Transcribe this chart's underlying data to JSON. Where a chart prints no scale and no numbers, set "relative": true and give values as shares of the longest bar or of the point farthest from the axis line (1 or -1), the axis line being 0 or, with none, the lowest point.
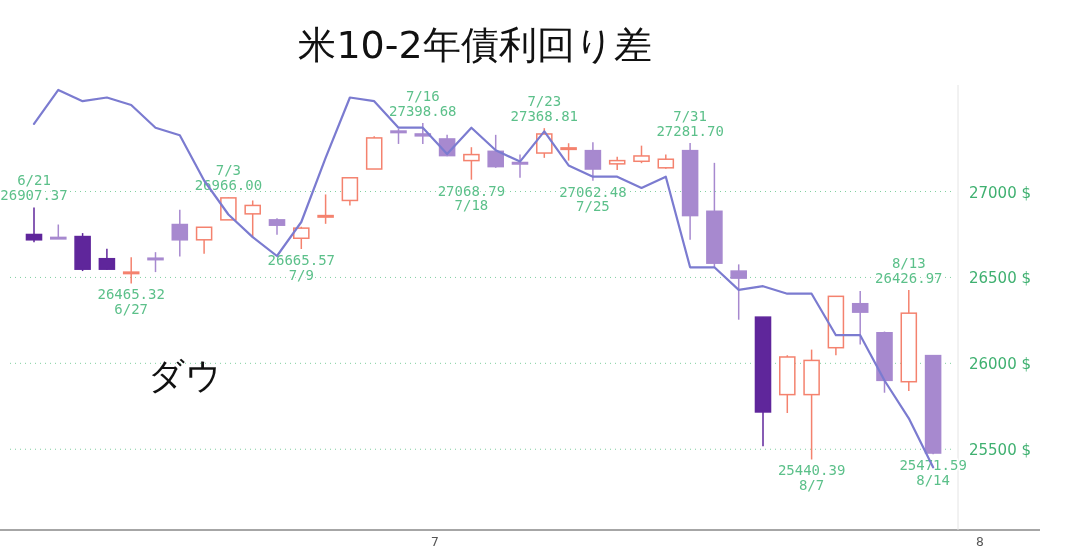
{
  "chart_data": [
    {
      "type": "candlestick",
      "categories": [
        null,
        null,
        null,
        null,
        null,
        null,
        null,
        null,
        null,
        null,
        null,
        null,
        null,
        null,
        null,
        null,
        null,
        null,
        null,
        null,
        null,
        null,
        null,
        null,
        null,
        null,
        null,
        null,
        null,
        null,
        null,
        null,
        null,
        null,
        null,
        null,
        null,
        null
      ],
      "ylim": [
        25030,
        27620
      ],
      "yticks": [
        {
          "value": 25500,
          "label": "25500 $"
        },
        {
          "value": 26000,
          "label": "26000 $"
        },
        {
          "value": 26500,
          "label": "26500 $"
        },
        {
          "value": 27000,
          "label": "27000 $"
        }
      ],
      "grid": "y",
      "series": [
        {
          "name": "ダウ",
          "ohlc": [
            [
              26750,
              26907.37,
              26705,
              26719
            ],
            [
              26733,
              26808,
              26730,
              26730
            ],
            [
              26738,
              26758,
              26537,
              26548
            ],
            [
              26609,
              26667,
              26545,
              26548
            ],
            [
              26526,
              26618,
              26465.32,
              26531
            ],
            [
              26612,
              26647,
              26531,
              26608
            ],
            [
              26808,
              26894,
              26622,
              26719
            ],
            [
              26719,
              26793,
              26638,
              26792
            ],
            [
              26835,
              26966.0,
              26835,
              26963
            ],
            [
              26870,
              26948,
              26734,
              26919
            ],
            [
              26835,
              26845,
              26748,
              26804
            ],
            [
              26728,
              26795,
              26665.57,
              26787
            ],
            [
              26856,
              26983,
              26812,
              26860
            ],
            [
              26948,
              27080,
              26919,
              27080
            ],
            [
              27131,
              27322,
              27131,
              27312
            ],
            [
              27352,
              27364,
              27277,
              27343
            ],
            [
              27335,
              27398.68,
              27277,
              27324
            ],
            [
              27306,
              27330,
              27205,
              27209
            ],
            [
              27180,
              27258,
              27068.79,
              27215
            ],
            [
              27234,
              27330,
              27138,
              27145
            ],
            [
              27169,
              27215,
              27080,
              27166
            ],
            [
              27224,
              27368.81,
              27196,
              27335
            ],
            [
              27250,
              27281,
              27180,
              27254
            ],
            [
              27238,
              27287,
              27062.48,
              27131
            ],
            [
              27161,
              27203,
              27126,
              27180
            ],
            [
              27176,
              27267,
              27165,
              27207
            ],
            [
              27138,
              27215,
              27133,
              27188
            ],
            [
              27238,
              27281.7,
              26719,
              26860
            ],
            [
              26885,
              27167,
              26560,
              26583
            ],
            [
              26537,
              26576,
              26254,
              26496
            ],
            [
              26269,
              26269,
              25517,
              25717
            ],
            [
              25818,
              26047,
              25711,
              26037
            ],
            [
              25818,
              26080,
              25440.39,
              26017
            ],
            [
              26091,
              26392,
              26047,
              26390
            ],
            [
              26347,
              26421,
              26109,
              26298
            ],
            [
              26178,
              26185,
              25829,
              25901
            ],
            [
              25893,
              26426.97,
              25839,
              26292
            ],
            [
              26045,
              26045,
              25471.59,
              25478
            ]
          ],
          "colors": [
            "#5f269b",
            "#a789cf",
            "#5f269b",
            "#5f269b",
            "#f4826e",
            "#a789cf",
            "#a789cf",
            "#f4826e",
            "#f4826e",
            "#f4826e",
            "#a789cf",
            "#f4826e",
            "#f4826e",
            "#f4826e",
            "#f4826e",
            "#a789cf",
            "#a789cf",
            "#a789cf",
            "#f4826e",
            "#a789cf",
            "#a789cf",
            "#f4826e",
            "#f4826e",
            "#a789cf",
            "#f4826e",
            "#f4826e",
            "#f4826e",
            "#a789cf",
            "#a789cf",
            "#a789cf",
            "#5f269b",
            "#f4826e",
            "#f4826e",
            "#f4826e",
            "#a789cf",
            "#a789cf",
            "#f4826e",
            "#a789cf"
          ]
        }
      ],
      "annotations": [
        "7",
        "8",
        {
          "text": "6/21\n26907.37",
          "y": 26907.37
        },
        {
          "text": "26465.32\n6/27",
          "y": 26465.32
        },
        {
          "text": "7/3\n26966.00",
          "y": 26966.0
        },
        {
          "text": "26665.57\n7/9",
          "y": 26665.57
        },
        {
          "text": "7/16\n27398.68",
          "y": 27398.68
        },
        {
          "text": "27068.79\n7/18",
          "y": 27068.79
        },
        {
          "text": "7/23\n27368.81",
          "y": 27368.81
        },
        {
          "text": "27062.48\n7/25",
          "y": 27062.48
        },
        {
          "text": "7/31\n27281.70",
          "y": 27281.7
        },
        {
          "text": "25440.39\n8/7",
          "y": 25440.39
        },
        {
          "text": "8/13\n26426.97",
          "y": 26426.97
        },
        {
          "text": "25471.59\n8/14",
          "y": 25471.59
        }
      ]
    },
    {
      "type": "line",
      "title": "米10-2年債利回り差",
      "relative": true,
      "categories": [
        null,
        null,
        null,
        null,
        null,
        null,
        null,
        null,
        null,
        null,
        null,
        null,
        null,
        null,
        null,
        null,
        null,
        null,
        null,
        null,
        null,
        null,
        null,
        null,
        null,
        null,
        null,
        null,
        null,
        null,
        null,
        null,
        null,
        null,
        null,
        null,
        null,
        null
      ],
      "series": [
        {
          "color": "#7b7bd0",
          "values": [
            0.91,
            1.0,
            0.97,
            0.98,
            0.96,
            0.9,
            0.88,
            0.76,
            0.67,
            0.61,
            0.56,
            0.65,
            0.82,
            0.98,
            0.97,
            0.9,
            0.9,
            0.83,
            0.9,
            0.84,
            0.81,
            0.89,
            0.8,
            0.77,
            0.77,
            0.74,
            0.77,
            0.53,
            0.53,
            0.47,
            0.48,
            0.46,
            0.46,
            0.35,
            0.35,
            0.23,
            0.13,
            0
          ]
        }
      ]
    }
  ]
}
